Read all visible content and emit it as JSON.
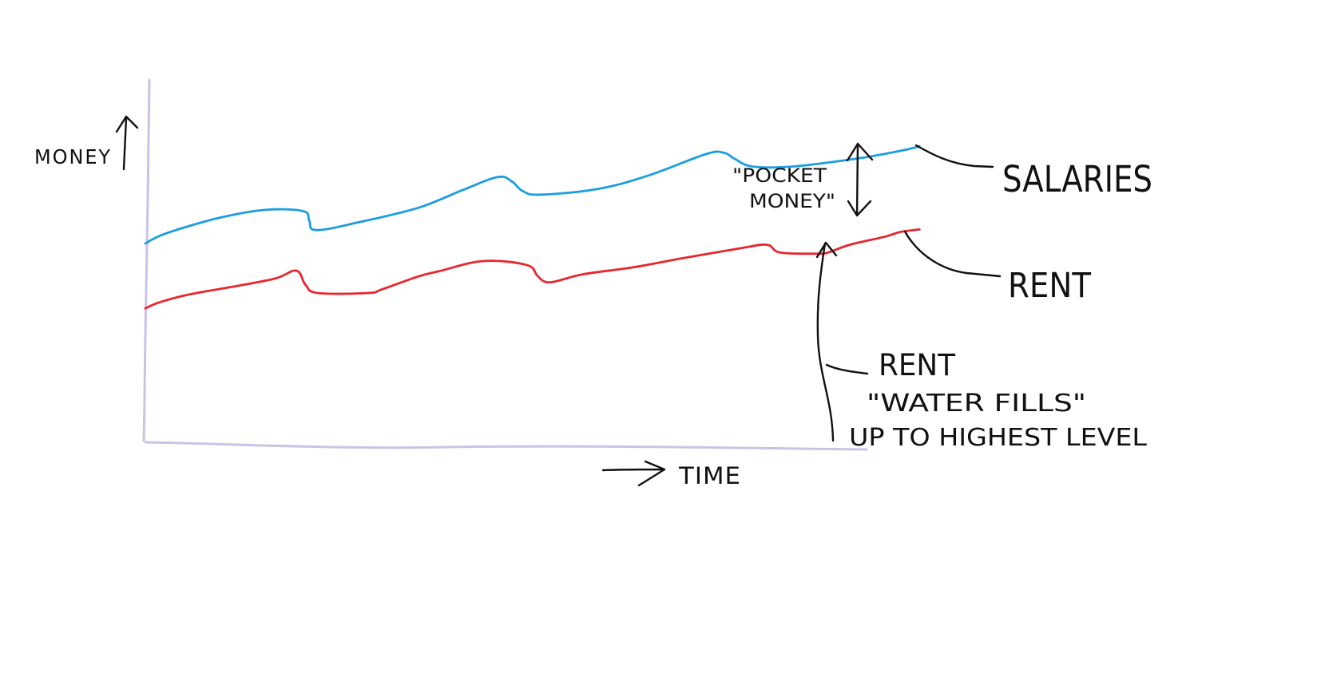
{
  "chart_data": {
    "type": "line",
    "title": "",
    "xlabel": "TIME",
    "ylabel": "MONEY",
    "grid": false,
    "series": [
      {
        "name": "SALARIES",
        "color": "#1a9ee0",
        "x": [
          0,
          2,
          6,
          11,
          17,
          22,
          22.8,
          23.8,
          30,
          38,
          44,
          49,
          51,
          52.5,
          55,
          63,
          70,
          78,
          80.5,
          82,
          84.5,
          90,
          99,
          105,
          107.7
        ],
        "values": [
          62.0,
          64.4,
          67.4,
          70.4,
          72.6,
          72.1,
          69.2,
          66.2,
          68.8,
          73.2,
          78.6,
          82.8,
          81.4,
          78.4,
          77.3,
          79.1,
          83.3,
          90.0,
          90.4,
          88.5,
          86.1,
          86.1,
          88.6,
          91.0,
          92.4
        ]
      },
      {
        "name": "RENT",
        "color": "#e8262e",
        "x": [
          0,
          2,
          6,
          12,
          18,
          21,
          22.3,
          24,
          31,
          33,
          38,
          41,
          47,
          53,
          54.5,
          55.5,
          57,
          61,
          68,
          75,
          83,
          86.5,
          88.3,
          93.5,
          95,
          98,
          103,
          105,
          107.7
        ],
        "values": [
          41.7,
          43.6,
          46.0,
          48.4,
          51.0,
          53.5,
          49.0,
          46.5,
          46.5,
          47.7,
          51.7,
          53.4,
          56.5,
          55.3,
          52.0,
          50.1,
          50.1,
          52.4,
          54.6,
          57.5,
          60.6,
          61.6,
          59.2,
          58.8,
          59.2,
          61.6,
          64.2,
          65.6,
          66.4
        ]
      }
    ],
    "annotations": {
      "pocket_money_line1": "\"POCKET",
      "pocket_money_line2": "MONEY\"",
      "rent_note_title": "RENT",
      "rent_note_line2": "\"WATER FILLS\"",
      "rent_note_line3": "UP TO HIGHEST LEVEL"
    }
  }
}
